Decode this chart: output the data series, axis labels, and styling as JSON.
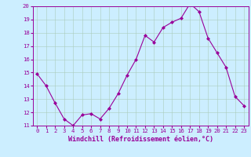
{
  "x": [
    0,
    1,
    2,
    3,
    4,
    5,
    6,
    7,
    8,
    9,
    10,
    11,
    12,
    13,
    14,
    15,
    16,
    17,
    18,
    19,
    20,
    21,
    22,
    23
  ],
  "y": [
    14.9,
    14.0,
    12.7,
    11.5,
    11.0,
    11.8,
    11.9,
    11.5,
    12.3,
    13.4,
    14.8,
    16.0,
    17.8,
    17.3,
    18.4,
    18.8,
    19.1,
    20.2,
    19.6,
    17.6,
    16.5,
    15.4,
    13.2,
    12.5
  ],
  "ylim": [
    11,
    20
  ],
  "yticks": [
    11,
    12,
    13,
    14,
    15,
    16,
    17,
    18,
    19,
    20
  ],
  "xticks": [
    0,
    1,
    2,
    3,
    4,
    5,
    6,
    7,
    8,
    9,
    10,
    11,
    12,
    13,
    14,
    15,
    16,
    17,
    18,
    19,
    20,
    21,
    22,
    23
  ],
  "xlabel": "Windchill (Refroidissement éolien,°C)",
  "line_color": "#990099",
  "marker": "D",
  "marker_size": 2.0,
  "bg_color": "#cceeff",
  "grid_color": "#aaccbb",
  "tick_fontsize": 5.2,
  "xlabel_fontsize": 6.0
}
